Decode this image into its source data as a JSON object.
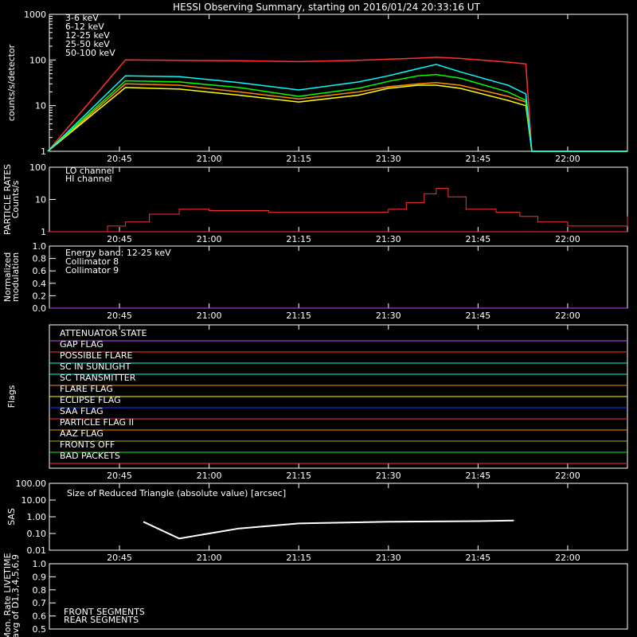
{
  "title": "HESSI Observing Summary, starting on 2016/01/24 20:33:16 UT",
  "colors": {
    "axes": "#ffffff",
    "background": "#000000"
  },
  "chart_data": [
    {
      "type": "line",
      "panel": "light_curves",
      "ylabel": "counts/s/detector",
      "yscale": "log",
      "ylim": [
        1,
        1000
      ],
      "yticks": [
        "1",
        "10",
        "100",
        "1000"
      ],
      "xticks": [
        "20:45",
        "21:00",
        "21:15",
        "21:30",
        "21:45",
        "22:00"
      ],
      "legend_placement": "top-left",
      "x": [
        "20:33",
        "20:46",
        "20:55",
        "21:05",
        "21:15",
        "21:25",
        "21:30",
        "21:35",
        "21:38",
        "21:42",
        "21:50",
        "21:53",
        "21:54",
        "22:10"
      ],
      "series": [
        {
          "name": "3-6 keV",
          "color": "#ff3030",
          "values": [
            1,
            100,
            98,
            96,
            92,
            98,
            104,
            110,
            115,
            108,
            90,
            82,
            1,
            1
          ]
        },
        {
          "name": "6-12 keV",
          "color": "#ff8c00",
          "values": [
            1,
            30,
            28,
            20,
            14,
            20,
            26,
            30,
            32,
            28,
            16,
            12,
            1,
            1
          ]
        },
        {
          "name": "12-25 keV",
          "color": "#ffff00",
          "values": [
            1,
            25,
            23,
            17,
            12,
            17,
            24,
            28,
            28,
            24,
            13,
            10,
            1,
            1
          ]
        },
        {
          "name": "25-50 keV",
          "color": "#00ff00",
          "values": [
            1,
            35,
            33,
            25,
            16,
            24,
            34,
            45,
            48,
            40,
            20,
            13,
            1,
            1
          ]
        },
        {
          "name": "50-100 keV",
          "color": "#00ffff",
          "values": [
            1,
            45,
            43,
            32,
            22,
            33,
            45,
            65,
            80,
            55,
            28,
            18,
            1,
            1
          ]
        }
      ]
    },
    {
      "type": "line",
      "panel": "particle_rates",
      "ylabel": "PARTICLE RATES Counts/s",
      "yscale": "log",
      "ylim": [
        1,
        100
      ],
      "yticks": [
        "1",
        "10",
        "100"
      ],
      "xticks": [
        "20:45",
        "21:00",
        "21:15",
        "21:30",
        "21:45",
        "22:00"
      ],
      "legend_placement": "top-left",
      "series": [
        {
          "name": "LO channel",
          "color": "#ff3030",
          "values": []
        },
        {
          "name": "HI channel",
          "color": "#ff3030",
          "x": [
            "20:33",
            "20:43",
            "20:46",
            "20:50",
            "20:55",
            "21:00",
            "21:10",
            "21:20",
            "21:30",
            "21:33",
            "21:36",
            "21:38",
            "21:40",
            "21:43",
            "21:48",
            "21:52",
            "21:55",
            "22:00",
            "22:05",
            "22:10"
          ],
          "values": [
            1,
            1.5,
            2,
            3.5,
            5,
            4.5,
            4,
            4,
            5,
            8,
            15,
            22,
            12,
            5,
            4,
            3,
            2,
            1.5,
            1.5,
            3
          ]
        }
      ]
    },
    {
      "type": "line",
      "panel": "modulation",
      "ylabel": "Normalized modulation",
      "ylim": [
        0,
        1
      ],
      "yticks": [
        "0.0",
        "0.2",
        "0.4",
        "0.6",
        "0.8",
        "1.0"
      ],
      "xticks": [
        "20:45",
        "21:00",
        "21:15",
        "21:30",
        "21:45",
        "22:00"
      ],
      "legend_placement": "top-left",
      "series": [
        {
          "name": "Energy band: 12-25 keV",
          "color": "#ffffff",
          "values": []
        },
        {
          "name": "Collimator 8",
          "color": "#00ffff",
          "values": []
        },
        {
          "name": "Collimator 9",
          "color": "#cc44ff",
          "values": [
            0,
            0
          ]
        }
      ]
    },
    {
      "type": "line",
      "panel": "flags",
      "ylabel": "Flags",
      "xticks": [
        "20:45",
        "21:00",
        "21:15",
        "21:30",
        "21:45",
        "22:00"
      ],
      "flags": [
        {
          "name": "ATTENUATOR STATE",
          "color": "#cc44ff"
        },
        {
          "name": "GAP FLAG",
          "color": "#ff3030"
        },
        {
          "name": "POSSIBLE FLARE",
          "color": "#00ffff"
        },
        {
          "name": "SC IN SUNLIGHT",
          "color": "#00ffff"
        },
        {
          "name": "SC TRANSMITTER",
          "color": "#ff8c00"
        },
        {
          "name": "FLARE FLAG",
          "color": "#ffff00"
        },
        {
          "name": "ECLIPSE FLAG",
          "color": "#2040ff"
        },
        {
          "name": "SAA FLAG",
          "color": "#ff3030"
        },
        {
          "name": "PARTICLE FLAG II",
          "color": "#ff8c00"
        },
        {
          "name": "AAZ FLAG",
          "color": "#b8b000"
        },
        {
          "name": "FRONTS OFF",
          "color": "#00ff00"
        },
        {
          "name": "BAD PACKETS",
          "color": "#ff3030"
        }
      ]
    },
    {
      "type": "line",
      "panel": "sas",
      "ylabel": "SAS",
      "yscale": "log",
      "ylim": [
        0.01,
        100
      ],
      "yticks": [
        "0.01",
        "0.10",
        "1.00",
        "10.00",
        "100.00"
      ],
      "xticks": [
        "20:45",
        "21:00",
        "21:15",
        "21:30",
        "21:45",
        "22:00"
      ],
      "annotation": "Size of Reduced Triangle (absolute value) [arcsec]",
      "series": [
        {
          "name": "",
          "color": "#ffffff",
          "x": [
            "20:49",
            "20:55",
            "21:05",
            "21:15",
            "21:30",
            "21:45",
            "21:51"
          ],
          "values": [
            0.5,
            0.05,
            0.2,
            0.4,
            0.5,
            0.55,
            0.6
          ]
        }
      ]
    },
    {
      "type": "line",
      "panel": "livetime",
      "ylabel": "Mon. Rate LIVETIME avg of D1,3,4,5,6,9",
      "ylim": [
        0.5,
        1.0
      ],
      "yticks": [
        "0.5",
        "0.6",
        "0.7",
        "0.8",
        "0.9",
        "1.0"
      ],
      "legend_placement": "bottom-left",
      "series": [
        {
          "name": "FRONT SEGMENTS",
          "color": "#00ff00",
          "values": []
        },
        {
          "name": "REAR SEGMENTS",
          "color": "#00a000",
          "values": []
        }
      ]
    }
  ]
}
